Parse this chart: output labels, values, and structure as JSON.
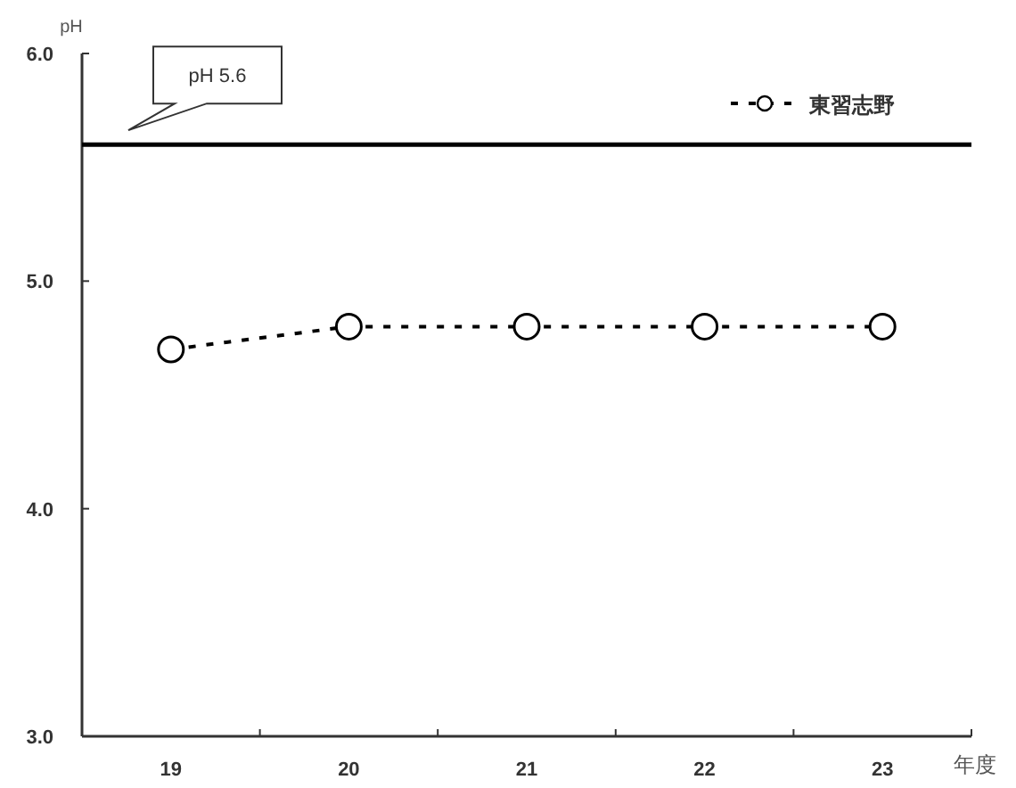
{
  "chart_data": {
    "type": "line",
    "ylabel": "pH",
    "xlabel": "年度",
    "categories": [
      "19",
      "20",
      "21",
      "22",
      "23"
    ],
    "series": [
      {
        "name": "東習志野",
        "color": "#000000",
        "values": [
          4.7,
          4.8,
          4.8,
          4.8,
          4.8
        ]
      }
    ],
    "ylim": [
      3.0,
      6.0
    ],
    "yticks": [
      {
        "value": 3,
        "label": "3.0"
      },
      {
        "value": 4,
        "label": "4.0"
      },
      {
        "value": 5,
        "label": "5.0"
      },
      {
        "value": 6,
        "label": "6.0"
      }
    ],
    "ref_lines": [
      {
        "axis": "y",
        "value": 5.6,
        "label": "pH 5.6",
        "color": "#000000",
        "line_style": "solid"
      }
    ],
    "marker": "circle",
    "line_style": "dashed",
    "legend": "top right",
    "grid": false
  }
}
